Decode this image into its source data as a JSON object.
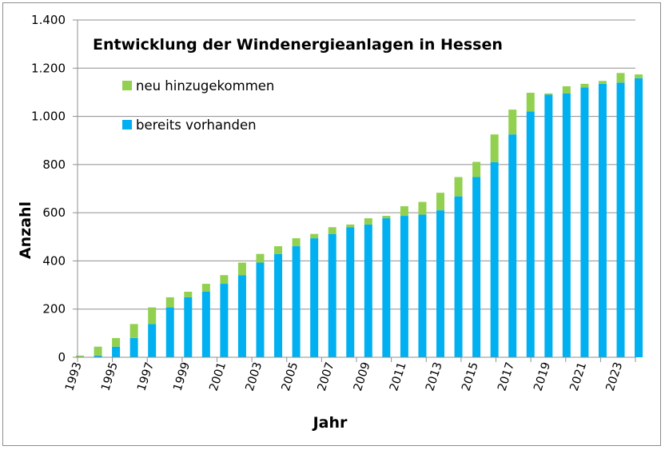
{
  "chart_data": {
    "type": "bar",
    "stacked": true,
    "title": "Entwicklung der Windenergieanlagen in Hessen",
    "xlabel": "Jahr",
    "ylabel": "Anzahl",
    "ylim": [
      0,
      1400
    ],
    "yticks": [
      0,
      200,
      400,
      600,
      800,
      1000,
      1200,
      1400
    ],
    "ytick_labels": [
      "0",
      "200",
      "400",
      "600",
      "800",
      "1.000",
      "1.200",
      "1.400"
    ],
    "xtick_labels": [
      "1993",
      "1995",
      "1997",
      "1999",
      "2001",
      "2003",
      "2005",
      "2007",
      "2009",
      "2011",
      "2013",
      "2015",
      "2017",
      "2019",
      "2021",
      "2023"
    ],
    "grid": true,
    "legend_position": "top-left",
    "categories": [
      "1993",
      "1994",
      "1995",
      "1996",
      "1997",
      "1998",
      "1999",
      "2000",
      "2001",
      "2002",
      "2003",
      "2004",
      "2005",
      "2006",
      "2007",
      "2008",
      "2009",
      "2010",
      "2011",
      "2012",
      "2013",
      "2014",
      "2015",
      "2016",
      "2017",
      "2018",
      "2019",
      "2020",
      "2021",
      "2022",
      "2023",
      "2024"
    ],
    "series": [
      {
        "name": "bereits vorhanden",
        "color": "#00b0f0",
        "values": [
          0,
          7,
          44,
          80,
          138,
          207,
          249,
          272,
          305,
          341,
          393,
          429,
          461,
          494,
          512,
          540,
          551,
          577,
          587,
          592,
          610,
          668,
          748,
          810,
          925,
          1020,
          1090,
          1095,
          1120,
          1135,
          1140,
          1158
        ]
      },
      {
        "name": "neu hinzugekommen",
        "color": "#92d050",
        "values": [
          7,
          37,
          36,
          58,
          69,
          42,
          23,
          33,
          36,
          52,
          36,
          32,
          33,
          18,
          28,
          11,
          26,
          10,
          40,
          53,
          73,
          80,
          63,
          115,
          103,
          78,
          5,
          30,
          15,
          12,
          40,
          16
        ]
      }
    ]
  }
}
